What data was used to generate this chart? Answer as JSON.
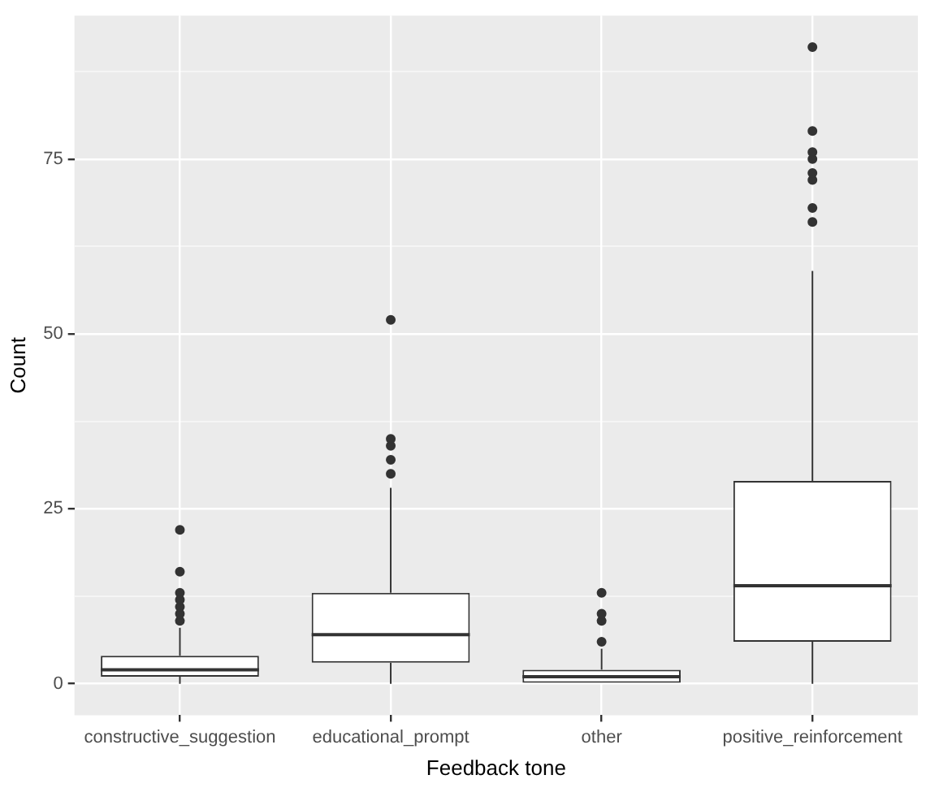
{
  "chart_data": {
    "type": "box",
    "xlabel": "Feedback tone",
    "ylabel": "Count",
    "categories": [
      "constructive_suggestion",
      "educational_prompt",
      "other",
      "positive_reinforcement"
    ],
    "boxes": [
      {
        "low": 0,
        "q1": 1,
        "median": 2,
        "q3": 4,
        "high": 8,
        "outliers": [
          9,
          10,
          11,
          12,
          13,
          16,
          22
        ]
      },
      {
        "low": 0,
        "q1": 3,
        "median": 7,
        "q3": 13,
        "high": 28,
        "outliers": [
          30,
          32,
          34,
          35,
          52
        ]
      },
      {
        "low": 0,
        "q1": 0,
        "median": 1,
        "q3": 2,
        "high": 5,
        "outliers": [
          6,
          9,
          10,
          13
        ]
      },
      {
        "low": 0,
        "q1": 6,
        "median": 14,
        "q3": 29,
        "high": 59,
        "outliers": [
          66,
          68,
          72,
          73,
          75,
          76,
          79,
          91
        ]
      }
    ],
    "ylim": [
      -4.5,
      95.5
    ],
    "yticks": [
      0,
      {
        "value": 12.5,
        "label": null
      },
      25,
      {
        "value": 37.5,
        "label": null
      },
      50,
      {
        "value": 62.5,
        "label": null
      },
      75,
      {
        "value": 87.5,
        "label": null
      }
    ],
    "grid": true,
    "legend": false
  }
}
